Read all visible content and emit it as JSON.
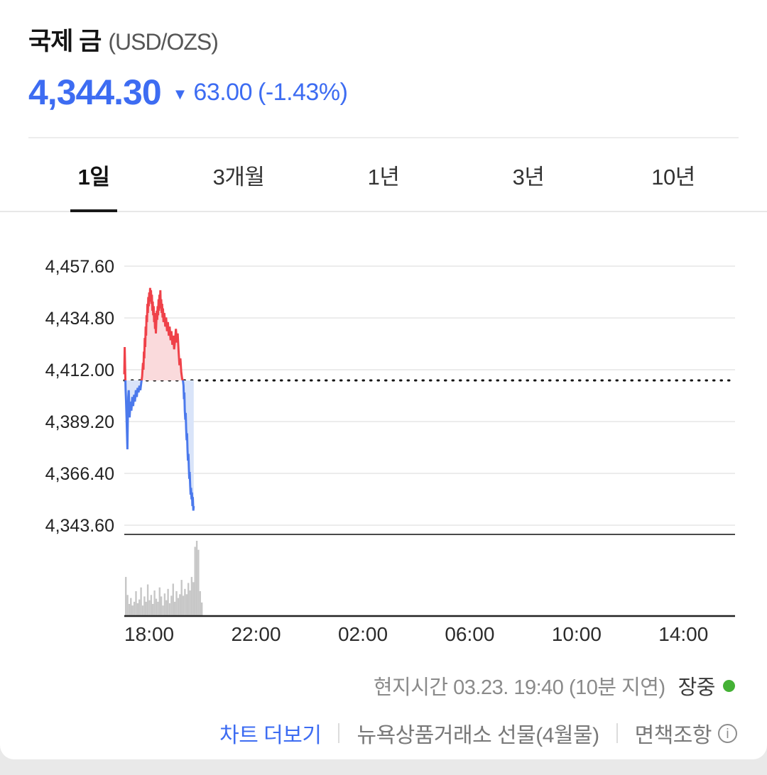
{
  "header": {
    "title": "국제 금",
    "unit": "(USD/OZS)",
    "price": "4,344.30",
    "change_arrow": "▼",
    "change_value": "63.00",
    "change_percent": "(-1.43%)"
  },
  "tabs": [
    {
      "label": "1일",
      "active": true
    },
    {
      "label": "3개월",
      "active": false
    },
    {
      "label": "1년",
      "active": false
    },
    {
      "label": "3년",
      "active": false
    },
    {
      "label": "10년",
      "active": false
    }
  ],
  "chart_data": {
    "type": "line",
    "title": "국제 금 1일 가격 차트",
    "ylabel": "USD/OZS",
    "previous_close": 4407.3,
    "last_price": 4344.3,
    "y_ticks": [
      {
        "label": "4,457.60",
        "value": 4457.6
      },
      {
        "label": "4,434.80",
        "value": 4434.8
      },
      {
        "label": "4,412.00",
        "value": 4412.0
      },
      {
        "label": "4,389.20",
        "value": 4389.2
      },
      {
        "label": "4,366.40",
        "value": 4366.4
      },
      {
        "label": "4,343.60",
        "value": 4343.6
      }
    ],
    "x_ticks": [
      {
        "label": "18:00",
        "minute": 60
      },
      {
        "label": "22:00",
        "minute": 300
      },
      {
        "label": "02:00",
        "minute": 540
      },
      {
        "label": "06:00",
        "minute": 780
      },
      {
        "label": "10:00",
        "minute": 1020
      },
      {
        "label": "14:00",
        "minute": 1260
      }
    ],
    "x_range_minutes": [
      4,
      1376
    ],
    "grid": true,
    "series": [
      {
        "name": "price",
        "points": [
          [
            4,
            4410
          ],
          [
            5,
            4422
          ],
          [
            6,
            4411
          ],
          [
            7,
            4403
          ],
          [
            8,
            4398
          ],
          [
            9,
            4392
          ],
          [
            10,
            4384
          ],
          [
            11,
            4377
          ],
          [
            12,
            4391
          ],
          [
            13,
            4400
          ],
          [
            14,
            4403
          ],
          [
            15,
            4395
          ],
          [
            16,
            4391
          ],
          [
            18,
            4398
          ],
          [
            20,
            4394
          ],
          [
            22,
            4400
          ],
          [
            24,
            4396
          ],
          [
            26,
            4401
          ],
          [
            28,
            4398
          ],
          [
            30,
            4403
          ],
          [
            32,
            4400
          ],
          [
            34,
            4404
          ],
          [
            36,
            4402
          ],
          [
            38,
            4405
          ],
          [
            40,
            4403
          ],
          [
            42,
            4406
          ],
          [
            44,
            4409
          ],
          [
            46,
            4415
          ],
          [
            47,
            4412
          ],
          [
            48,
            4420
          ],
          [
            49,
            4417
          ],
          [
            50,
            4426
          ],
          [
            51,
            4422
          ],
          [
            52,
            4431
          ],
          [
            53,
            4427
          ],
          [
            54,
            4436
          ],
          [
            55,
            4433
          ],
          [
            56,
            4441
          ],
          [
            57,
            4437
          ],
          [
            58,
            4444
          ],
          [
            59,
            4440
          ],
          [
            60,
            4446
          ],
          [
            61,
            4442
          ],
          [
            62,
            4448
          ],
          [
            63,
            4443
          ],
          [
            64,
            4447
          ],
          [
            65,
            4441
          ],
          [
            66,
            4445
          ],
          [
            67,
            4438
          ],
          [
            68,
            4442
          ],
          [
            69,
            4436
          ],
          [
            70,
            4440
          ],
          [
            71,
            4433
          ],
          [
            72,
            4437
          ],
          [
            73,
            4430
          ],
          [
            74,
            4434
          ],
          [
            75,
            4428
          ],
          [
            76,
            4433
          ],
          [
            77,
            4438
          ],
          [
            78,
            4434
          ],
          [
            79,
            4440
          ],
          [
            80,
            4436
          ],
          [
            81,
            4443
          ],
          [
            82,
            4438
          ],
          [
            83,
            4445
          ],
          [
            84,
            4440
          ],
          [
            85,
            4447
          ],
          [
            86,
            4439
          ],
          [
            87,
            4443
          ],
          [
            88,
            4437
          ],
          [
            89,
            4441
          ],
          [
            90,
            4435
          ],
          [
            91,
            4439
          ],
          [
            92,
            4433
          ],
          [
            94,
            4437
          ],
          [
            96,
            4431
          ],
          [
            98,
            4435
          ],
          [
            100,
            4429
          ],
          [
            102,
            4433
          ],
          [
            104,
            4427
          ],
          [
            106,
            4431
          ],
          [
            108,
            4425
          ],
          [
            110,
            4429
          ],
          [
            112,
            4423
          ],
          [
            114,
            4427
          ],
          [
            116,
            4421
          ],
          [
            118,
            4425
          ],
          [
            120,
            4430
          ],
          [
            122,
            4424
          ],
          [
            124,
            4428
          ],
          [
            126,
            4420
          ],
          [
            128,
            4414
          ],
          [
            130,
            4417
          ],
          [
            132,
            4411
          ],
          [
            134,
            4408
          ],
          [
            136,
            4407
          ],
          [
            137,
            4405
          ],
          [
            138,
            4399
          ],
          [
            139,
            4402
          ],
          [
            140,
            4394
          ],
          [
            141,
            4390
          ],
          [
            142,
            4393
          ],
          [
            143,
            4386
          ],
          [
            144,
            4381
          ],
          [
            145,
            4384
          ],
          [
            146,
            4377
          ],
          [
            147,
            4372
          ],
          [
            148,
            4375
          ],
          [
            149,
            4369
          ],
          [
            150,
            4364
          ],
          [
            151,
            4367
          ],
          [
            152,
            4361
          ],
          [
            153,
            4357
          ],
          [
            154,
            4360
          ],
          [
            155,
            4355
          ],
          [
            156,
            4358
          ],
          [
            157,
            4352
          ],
          [
            158,
            4356
          ],
          [
            159,
            4350
          ],
          [
            160,
            4352
          ]
        ]
      }
    ],
    "volume_bars": [
      0.52,
      0.28,
      0.16,
      0.24,
      0.14,
      0.19,
      0.33,
      0.17,
      0.22,
      0.38,
      0.14,
      0.26,
      0.19,
      0.42,
      0.21,
      0.28,
      0.16,
      0.34,
      0.23,
      0.19,
      0.38,
      0.26,
      0.14,
      0.3,
      0.21,
      0.36,
      0.17,
      0.27,
      0.43,
      0.19,
      0.33,
      0.24,
      0.29,
      0.48,
      0.27,
      0.36,
      0.29,
      0.44,
      0.34,
      0.52,
      0.45,
      0.92,
      1.0,
      0.88,
      0.33,
      0.18
    ],
    "colors": {
      "up": "#ef4149",
      "up_fill": "#fadadc",
      "down": "#4b79ec",
      "down_fill": "#d9e4f9",
      "volume": "#c7c7c7",
      "grid": "#ececec",
      "reference": "#151515",
      "accent_blue": "#3d6cf2",
      "market_dot": "#44b135"
    }
  },
  "status": {
    "local_time": "현지시간 03.23. 19:40 (10분 지연)",
    "market_state": "장중"
  },
  "footer": {
    "more_chart": "차트 더보기",
    "exchange": "뉴욕상품거래소 선물(4월물)",
    "disclaimer": "면책조항"
  }
}
